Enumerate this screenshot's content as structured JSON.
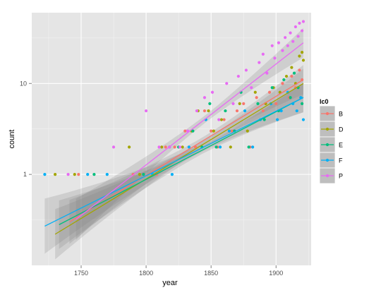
{
  "chart_data": {
    "type": "scatter",
    "y_scale": "log10",
    "xlabel": "year",
    "ylabel": "count",
    "xlim": [
      1712,
      1927
    ],
    "ylim": [
      0.1,
      60
    ],
    "x_ticks": [
      1750,
      1800,
      1850,
      1900
    ],
    "y_ticks": [
      1,
      10
    ],
    "grid": true,
    "legend": {
      "title": "lc0",
      "placement": "right"
    },
    "series": [
      {
        "name": "B",
        "color": "#F8766D",
        "trend": {
          "x0": 1741,
          "y0": 0.3,
          "x1": 1921,
          "y1": 11
        },
        "points": [
          [
            1748,
            1
          ],
          [
            1790,
            1
          ],
          [
            1808,
            1
          ],
          [
            1815,
            2
          ],
          [
            1822,
            2
          ],
          [
            1830,
            3
          ],
          [
            1838,
            2
          ],
          [
            1845,
            5
          ],
          [
            1850,
            3
          ],
          [
            1855,
            2
          ],
          [
            1860,
            4
          ],
          [
            1866,
            3
          ],
          [
            1870,
            5
          ],
          [
            1875,
            6
          ],
          [
            1880,
            2
          ],
          [
            1885,
            7
          ],
          [
            1890,
            5
          ],
          [
            1895,
            8
          ],
          [
            1900,
            6
          ],
          [
            1905,
            10
          ],
          [
            1910,
            7
          ],
          [
            1912,
            12
          ],
          [
            1915,
            9
          ],
          [
            1918,
            14
          ],
          [
            1920,
            11
          ]
        ]
      },
      {
        "name": "D",
        "color": "#A3A500",
        "trend": {
          "x0": 1730,
          "y0": 0.22,
          "x1": 1921,
          "y1": 10
        },
        "points": [
          [
            1730,
            1
          ],
          [
            1745,
            1
          ],
          [
            1787,
            2
          ],
          [
            1795,
            1
          ],
          [
            1812,
            2
          ],
          [
            1828,
            2
          ],
          [
            1835,
            3
          ],
          [
            1840,
            5
          ],
          [
            1848,
            5
          ],
          [
            1852,
            3
          ],
          [
            1858,
            4
          ],
          [
            1865,
            2
          ],
          [
            1872,
            6
          ],
          [
            1878,
            3
          ],
          [
            1884,
            8
          ],
          [
            1892,
            6
          ],
          [
            1898,
            9
          ],
          [
            1903,
            8
          ],
          [
            1908,
            12
          ],
          [
            1912,
            15
          ],
          [
            1915,
            10
          ],
          [
            1918,
            20
          ],
          [
            1920,
            22
          ],
          [
            1921,
            18
          ]
        ]
      },
      {
        "name": "E",
        "color": "#00BF7D",
        "trend": {
          "x0": 1733,
          "y0": 0.28,
          "x1": 1921,
          "y1": 7
        },
        "points": [
          [
            1760,
            1
          ],
          [
            1798,
            1
          ],
          [
            1818,
            2
          ],
          [
            1825,
            2
          ],
          [
            1836,
            3
          ],
          [
            1843,
            2
          ],
          [
            1849,
            6
          ],
          [
            1854,
            2
          ],
          [
            1861,
            5
          ],
          [
            1868,
            3
          ],
          [
            1873,
            8
          ],
          [
            1879,
            2
          ],
          [
            1886,
            6
          ],
          [
            1891,
            4
          ],
          [
            1897,
            9
          ],
          [
            1902,
            5
          ],
          [
            1906,
            11
          ],
          [
            1911,
            7
          ],
          [
            1914,
            13
          ],
          [
            1917,
            9
          ],
          [
            1920,
            6
          ]
        ]
      },
      {
        "name": "F",
        "color": "#00B0F6",
        "trend": {
          "x0": 1722,
          "y0": 0.27,
          "x1": 1921,
          "y1": 7
        },
        "points": [
          [
            1722,
            1
          ],
          [
            1755,
            1
          ],
          [
            1770,
            1
          ],
          [
            1805,
            1
          ],
          [
            1820,
            1
          ],
          [
            1833,
            2
          ],
          [
            1846,
            4
          ],
          [
            1857,
            2
          ],
          [
            1864,
            3
          ],
          [
            1876,
            5
          ],
          [
            1882,
            2
          ],
          [
            1888,
            4
          ],
          [
            1896,
            6
          ],
          [
            1901,
            4
          ],
          [
            1904,
            5
          ],
          [
            1909,
            8
          ],
          [
            1913,
            6
          ],
          [
            1916,
            5
          ],
          [
            1919,
            7
          ],
          [
            1921,
            4
          ]
        ]
      },
      {
        "name": "P",
        "color": "#E76BF3",
        "trend": {
          "x0": 1746,
          "y0": 0.32,
          "x1": 1921,
          "y1": 28
        },
        "points": [
          [
            1740,
            1
          ],
          [
            1775,
            2
          ],
          [
            1800,
            5
          ],
          [
            1810,
            2
          ],
          [
            1818,
            2
          ],
          [
            1826,
            2
          ],
          [
            1832,
            3
          ],
          [
            1839,
            5
          ],
          [
            1845,
            7
          ],
          [
            1851,
            8
          ],
          [
            1856,
            4
          ],
          [
            1862,
            10
          ],
          [
            1867,
            6
          ],
          [
            1871,
            12
          ],
          [
            1877,
            14
          ],
          [
            1881,
            9
          ],
          [
            1887,
            17
          ],
          [
            1890,
            21
          ],
          [
            1893,
            13
          ],
          [
            1897,
            26
          ],
          [
            1899,
            19
          ],
          [
            1902,
            28
          ],
          [
            1905,
            23
          ],
          [
            1907,
            32
          ],
          [
            1909,
            26
          ],
          [
            1911,
            36
          ],
          [
            1913,
            29
          ],
          [
            1915,
            42
          ],
          [
            1917,
            33
          ],
          [
            1918,
            46
          ],
          [
            1920,
            38
          ],
          [
            1921,
            48
          ]
        ]
      }
    ]
  }
}
